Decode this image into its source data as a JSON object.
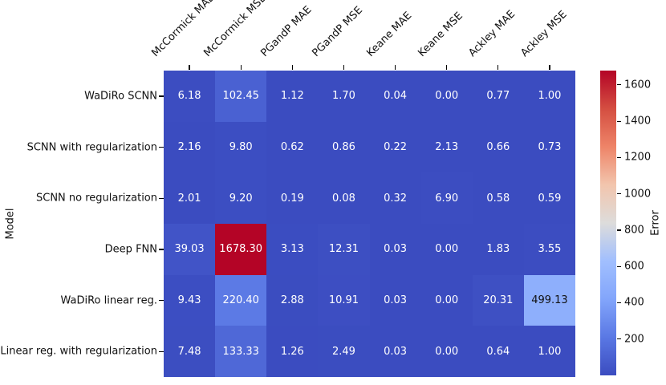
{
  "chart_data": {
    "type": "heatmap",
    "title": "",
    "xlabel": "",
    "ylabel": "Model",
    "colorbar_label": "Error",
    "colormap": "coolwarm",
    "vmin": 0,
    "vmax": 1678.3,
    "grid": false,
    "legend_position": "colorbar-right",
    "columns": [
      "McCormick MAE",
      "McCormick MSE",
      "PGandP MAE",
      "PGandP MSE",
      "Keane MAE",
      "Keane MSE",
      "Ackley MAE",
      "Ackley MSE"
    ],
    "rows": [
      "WaDiRo SCNN",
      "SCNN with regularization",
      "SCNN no regularization",
      "Deep FNN",
      "WaDiRo linear reg.",
      "Linear reg. with regularization"
    ],
    "values": [
      [
        6.18,
        102.45,
        1.12,
        1.7,
        0.04,
        0.0,
        0.77,
        1.0
      ],
      [
        2.16,
        9.8,
        0.62,
        0.86,
        0.22,
        2.13,
        0.66,
        0.73
      ],
      [
        2.01,
        9.2,
        0.19,
        0.08,
        0.32,
        6.9,
        0.58,
        0.59
      ],
      [
        39.03,
        1678.3,
        3.13,
        12.31,
        0.03,
        0.0,
        1.83,
        3.55
      ],
      [
        9.43,
        220.4,
        2.88,
        10.91,
        0.03,
        0.0,
        20.31,
        499.13
      ],
      [
        7.48,
        133.33,
        1.26,
        2.49,
        0.03,
        0.0,
        0.64,
        1.0
      ]
    ],
    "value_decimals": 2,
    "colorbar_ticks": [
      200,
      400,
      600,
      800,
      1000,
      1200,
      1400,
      1600
    ],
    "colors": {
      "annotation_light": "#ffffff",
      "annotation_dark": "#111111",
      "axis_text": "#111111",
      "background": "#ffffff"
    },
    "colormap_anchors": [
      {
        "t": 0.0,
        "color": "#3B4CC0"
      },
      {
        "t": 0.125,
        "color": "#5A78E4"
      },
      {
        "t": 0.25,
        "color": "#82A5FB"
      },
      {
        "t": 0.375,
        "color": "#A1BFFE"
      },
      {
        "t": 0.5,
        "color": "#DDDCDB"
      },
      {
        "t": 0.625,
        "color": "#F2C5AD"
      },
      {
        "t": 0.75,
        "color": "#EE8468"
      },
      {
        "t": 0.875,
        "color": "#D44E41"
      },
      {
        "t": 1.0,
        "color": "#B40426"
      }
    ]
  }
}
